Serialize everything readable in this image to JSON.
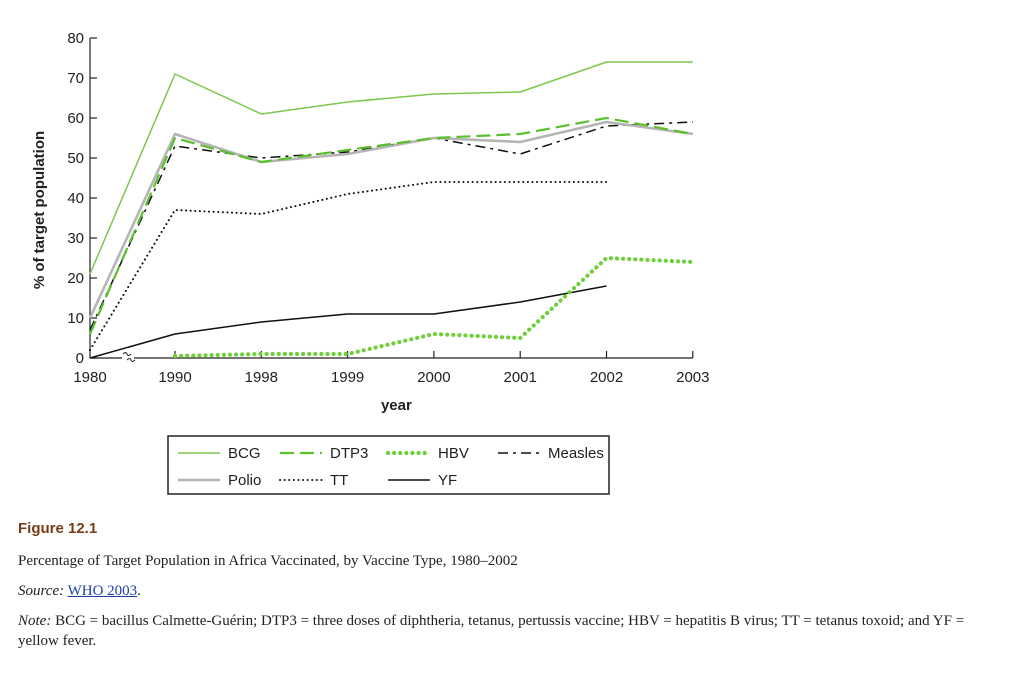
{
  "chart_data": {
    "type": "line",
    "xlabel": "year",
    "ylabel": "% of target population",
    "categories": [
      "1980",
      "1990",
      "1998",
      "1999",
      "2000",
      "2001",
      "2002",
      "2003"
    ],
    "yticks": [
      "0",
      "10",
      "20",
      "30",
      "40",
      "50",
      "60",
      "70",
      "80"
    ],
    "ylim": [
      0,
      80
    ],
    "grid": false,
    "axis_break_between": [
      "1980",
      "1990"
    ],
    "legend_position": "bottom",
    "series": [
      {
        "name": "BCG",
        "style": "solid",
        "color": "#7cc84a",
        "values": [
          21,
          71,
          61,
          64,
          66,
          66.5,
          74,
          74
        ]
      },
      {
        "name": "DTP3",
        "style": "dashed",
        "color": "#5bbf2e",
        "values": [
          6,
          55,
          49,
          52,
          55,
          56,
          60,
          56
        ]
      },
      {
        "name": "HBV",
        "style": "dotted-bold",
        "color": "#6fcf3a",
        "values": [
          null,
          0.5,
          1,
          1,
          6,
          5,
          25,
          24
        ]
      },
      {
        "name": "Measles",
        "style": "dash-dot",
        "color": "#111111",
        "values": [
          7,
          53,
          50,
          51.5,
          55,
          51,
          58,
          59
        ]
      },
      {
        "name": "Polio",
        "style": "solid",
        "color": "#b5b5b5",
        "values": [
          10,
          56,
          49,
          51,
          55,
          54,
          59,
          56
        ]
      },
      {
        "name": "TT",
        "style": "dotted",
        "color": "#111111",
        "values": [
          2,
          37,
          36,
          41,
          44,
          44,
          44,
          null
        ]
      },
      {
        "name": "YF",
        "style": "solid",
        "color": "#111111",
        "values": [
          0,
          6,
          9,
          11,
          11,
          14,
          18,
          null
        ]
      }
    ]
  },
  "caption": {
    "figure_label": "Figure 12.1",
    "title": "Percentage of Target Population in Africa Vaccinated, by Vaccine Type, 1980–2002",
    "source_label": "Source:",
    "source_link": "WHO 2003",
    "source_end": ".",
    "note_label": "Note:",
    "note_text": "BCG = bacillus Calmette-Guérin; DTP3 = three doses of diphtheria, tetanus, pertussis vaccine; HBV = hepatitis B virus; TT = tetanus toxoid; and YF = yellow fever."
  }
}
